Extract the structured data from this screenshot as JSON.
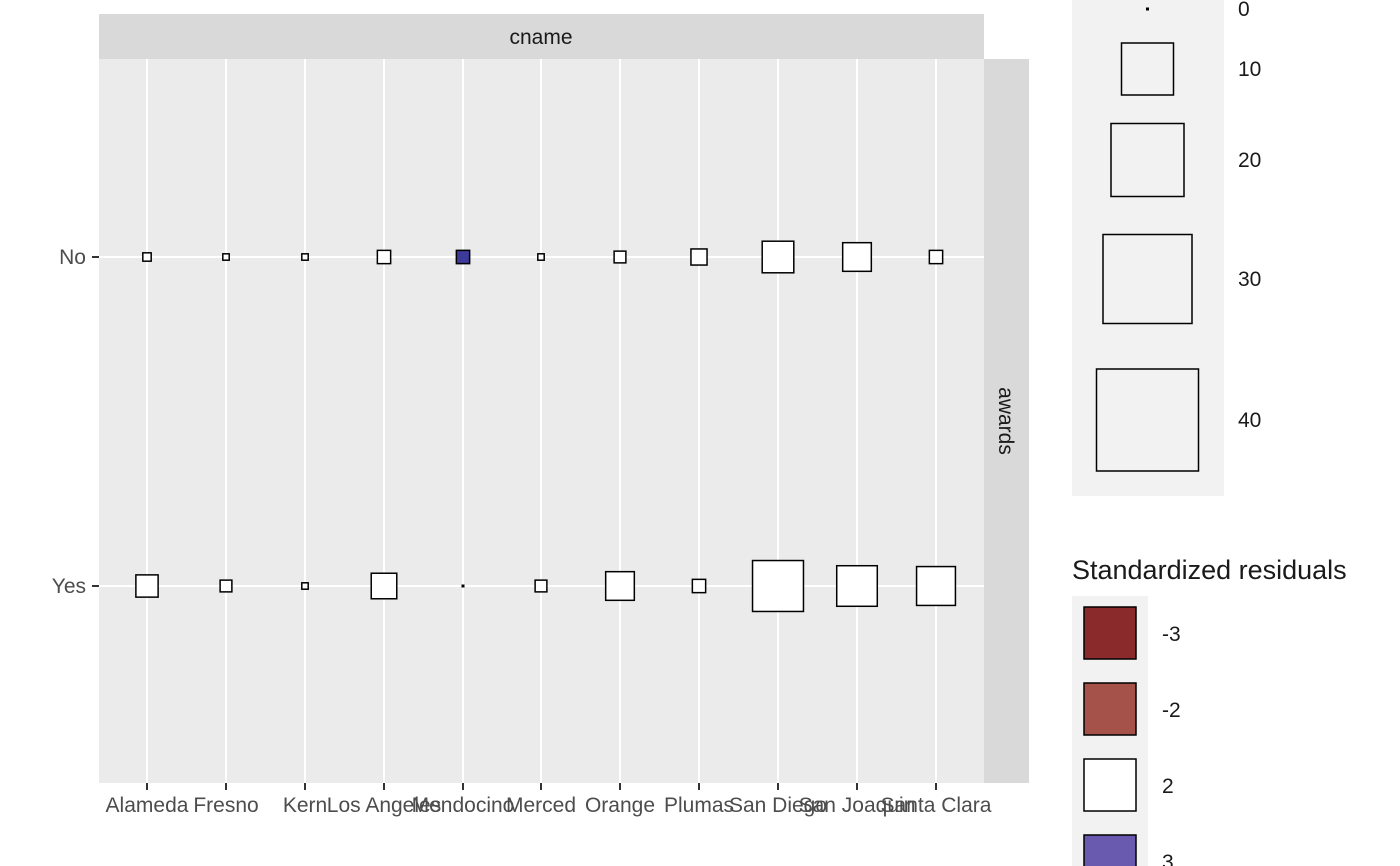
{
  "chart_data": {
    "type": "heatmap",
    "subtype": "mosaic-size-plot",
    "facet_top_label": "cname",
    "facet_right_label": "awards",
    "x_categories": [
      "Alameda",
      "Fresno",
      "Kern",
      "Los Angeles",
      "Mendocino",
      "Merced",
      "Orange",
      "Plumas",
      "San Diego",
      "San Joaquin",
      "Santa Clara"
    ],
    "y_categories": [
      "No",
      "Yes"
    ],
    "cells": [
      {
        "x": "Alameda",
        "y": "No",
        "n": 3,
        "residual": 2
      },
      {
        "x": "Fresno",
        "y": "No",
        "n": 2,
        "residual": 2
      },
      {
        "x": "Kern",
        "y": "No",
        "n": 2,
        "residual": 2
      },
      {
        "x": "Los Angeles",
        "y": "No",
        "n": 6,
        "residual": 2
      },
      {
        "x": "Mendocino",
        "y": "No",
        "n": 6,
        "residual": 3
      },
      {
        "x": "Merced",
        "y": "No",
        "n": 2,
        "residual": 2
      },
      {
        "x": "Orange",
        "y": "No",
        "n": 5,
        "residual": 2
      },
      {
        "x": "Plumas",
        "y": "No",
        "n": 8,
        "residual": 2
      },
      {
        "x": "San Diego",
        "y": "No",
        "n": 22,
        "residual": 2
      },
      {
        "x": "San Joaquin",
        "y": "No",
        "n": 19,
        "residual": 2
      },
      {
        "x": "Santa Clara",
        "y": "No",
        "n": 6,
        "residual": 2
      },
      {
        "x": "Alameda",
        "y": "Yes",
        "n": 13,
        "residual": 2
      },
      {
        "x": "Fresno",
        "y": "Yes",
        "n": 5,
        "residual": 2
      },
      {
        "x": "Kern",
        "y": "Yes",
        "n": 2,
        "residual": 2
      },
      {
        "x": "Los Angeles",
        "y": "Yes",
        "n": 16,
        "residual": 2
      },
      {
        "x": "Mendocino",
        "y": "Yes",
        "n": 0,
        "residual": 2
      },
      {
        "x": "Merced",
        "y": "Yes",
        "n": 5,
        "residual": 2
      },
      {
        "x": "Orange",
        "y": "Yes",
        "n": 19,
        "residual": 2
      },
      {
        "x": "Plumas",
        "y": "Yes",
        "n": 6,
        "residual": 2
      },
      {
        "x": "San Diego",
        "y": "Yes",
        "n": 45,
        "residual": 2
      },
      {
        "x": "San Joaquin",
        "y": "Yes",
        "n": 32,
        "residual": 2
      },
      {
        "x": "Santa Clara",
        "y": "Yes",
        "n": 30,
        "residual": 2
      }
    ],
    "size_legend": {
      "title": "",
      "values": [
        "0",
        "10",
        "20",
        "30",
        "40"
      ]
    },
    "fill_legend": {
      "title": "Standardized residuals",
      "entries": [
        {
          "label": "-3",
          "color": "#8b2a2a"
        },
        {
          "label": "-2",
          "color": "#a5524b"
        },
        {
          "label": "2",
          "color": "#ffffff"
        },
        {
          "label": "3",
          "color": "#6a5aaf"
        }
      ]
    },
    "colors": {
      "panel": "#ebebeb",
      "strip": "#d9d9d9",
      "grid": "#ffffff",
      "legend_key": "#f2f2f2",
      "mendocino_no_fill": "#3d3a9a",
      "axis_text": "#4d4d4d"
    },
    "grid": true
  }
}
